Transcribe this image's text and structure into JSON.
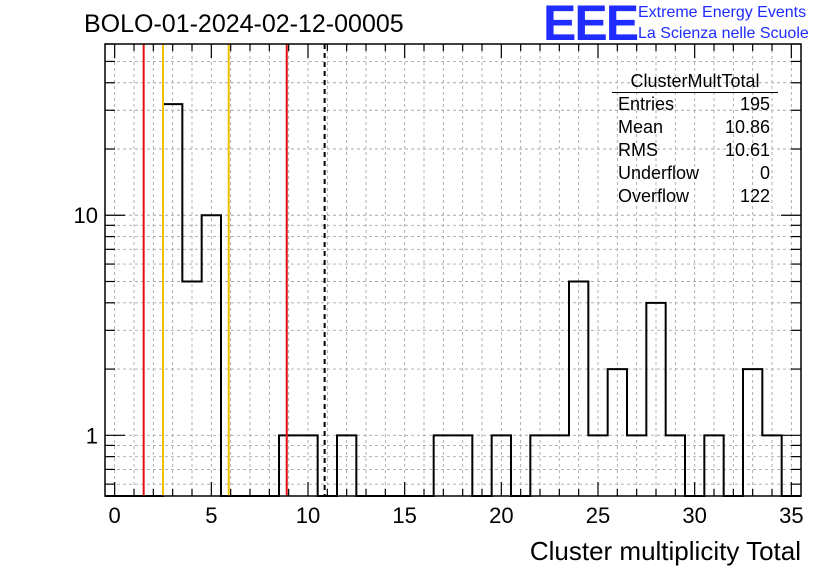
{
  "title": "BOLO-01-2024-02-12-00005",
  "logo": {
    "mark": "EEE",
    "line1": "Extreme Energy Events",
    "line2": "La Scienza nelle Scuole",
    "color": "#1f2bff"
  },
  "stats": {
    "name": "ClusterMultTotal",
    "rows": [
      {
        "label": "Entries",
        "value": "195"
      },
      {
        "label": "Mean",
        "value": "10.86"
      },
      {
        "label": "RMS",
        "value": "10.61"
      },
      {
        "label": "Underflow",
        "value": "0"
      },
      {
        "label": "Overflow",
        "value": "122"
      }
    ]
  },
  "chart_data": {
    "type": "bar",
    "histogram": true,
    "xlabel": "Cluster multiplicity Total",
    "ylabel": "",
    "xlim": [
      -0.5,
      35.5
    ],
    "ylim": [
      0.53,
      60
    ],
    "yscale": "log",
    "grid": true,
    "bin_width": 1,
    "bin_centers": [
      0,
      1,
      2,
      3,
      4,
      5,
      6,
      7,
      8,
      9,
      10,
      11,
      12,
      13,
      14,
      15,
      16,
      17,
      18,
      19,
      20,
      21,
      22,
      23,
      24,
      25,
      26,
      27,
      28,
      29,
      30,
      31,
      32,
      33,
      34,
      35
    ],
    "values": [
      0,
      0,
      0,
      32,
      5,
      10,
      0,
      0,
      0,
      1,
      1,
      0,
      1,
      0,
      0,
      0,
      0,
      1,
      1,
      0,
      1,
      0,
      1,
      1,
      5,
      1,
      2,
      1,
      4,
      1,
      0,
      1,
      0,
      2,
      1,
      0
    ],
    "x_ticks": [
      0,
      5,
      10,
      15,
      20,
      25,
      30,
      35
    ],
    "y_ticks": [
      {
        "value": 1,
        "label": "1"
      },
      {
        "value": 10,
        "label": "10"
      }
    ],
    "vertical_lines": [
      {
        "x": 1.5,
        "color": "#e01010",
        "style": "solid"
      },
      {
        "x": 2.5,
        "color": "#f0c000",
        "style": "solid"
      },
      {
        "x": 5.9,
        "color": "#f0c000",
        "style": "solid"
      },
      {
        "x": 8.9,
        "color": "#e01010",
        "style": "solid"
      },
      {
        "x": 10.86,
        "color": "#000000",
        "style": "dashed"
      }
    ]
  }
}
